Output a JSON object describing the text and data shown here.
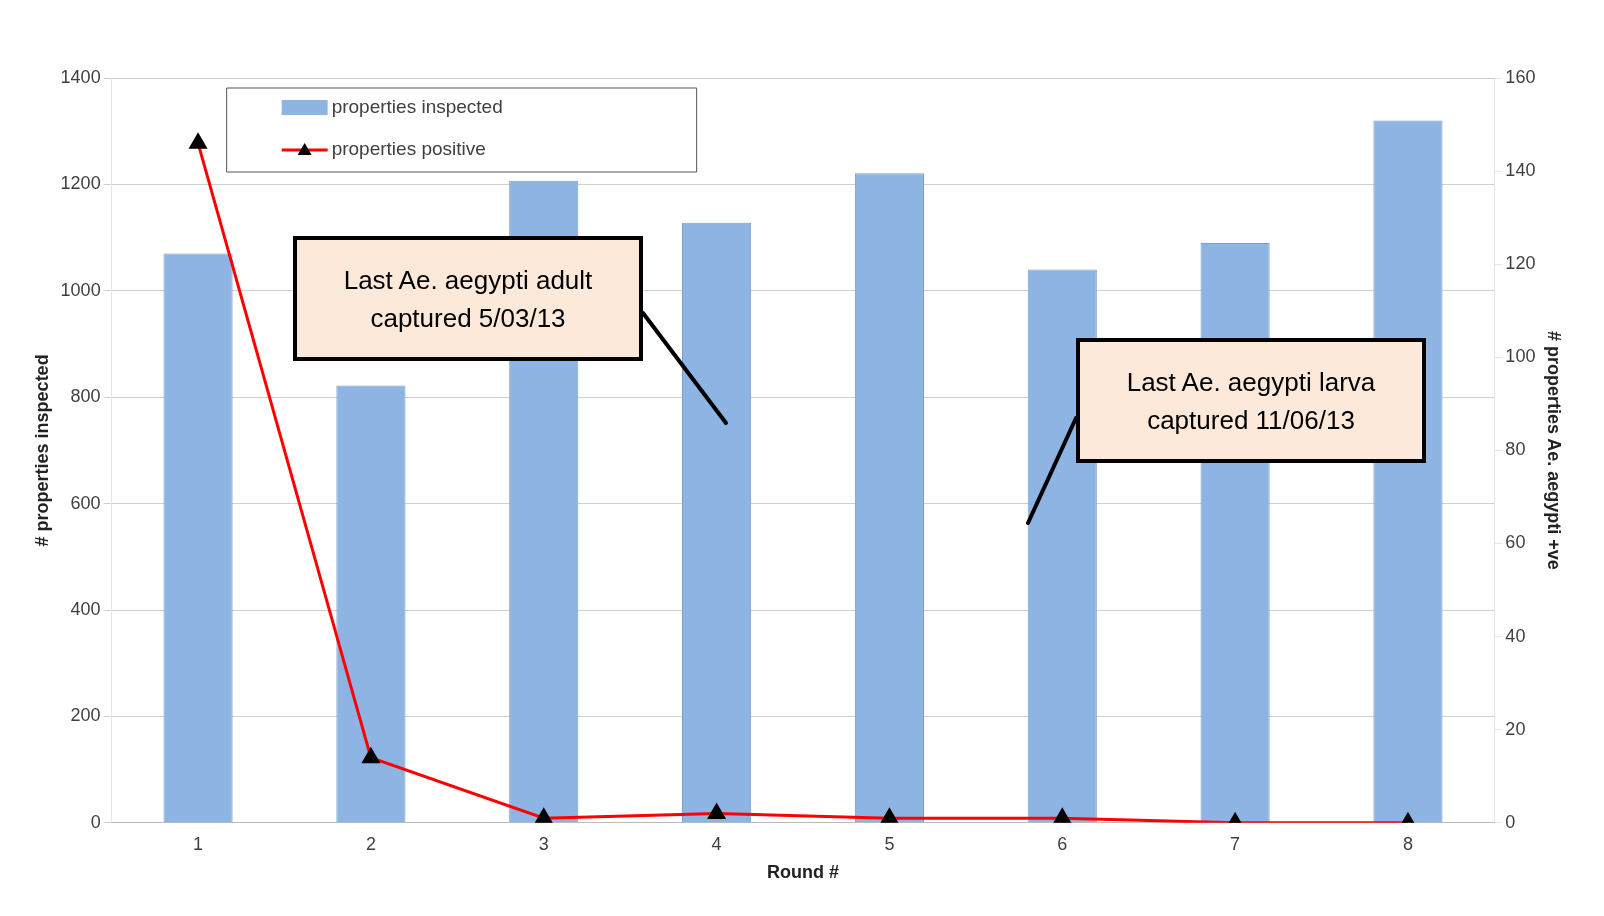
{
  "chart_data": {
    "type": "bar",
    "categories": [
      "1",
      "2",
      "3",
      "4",
      "5",
      "6",
      "7",
      "8"
    ],
    "xlabel": "Round #",
    "ylabel": "# properties inspected",
    "y2label": "# properties Ae. aegypti +ve",
    "series": [
      {
        "name": "properties inspected",
        "color": "#8eb4e3",
        "values": [
          1070,
          822,
          1207,
          1128,
          1221,
          1040,
          1090,
          1320
        ]
      },
      {
        "name": "properties positive",
        "type": "line",
        "axis": "y2",
        "color": "#ff0000",
        "marker": "triangle",
        "values": [
          146,
          14,
          1,
          2,
          1,
          1,
          0,
          0
        ]
      }
    ],
    "ylim": [
      0,
      1400
    ],
    "yticks": [
      0,
      200,
      400,
      600,
      800,
      1000,
      1200,
      1400
    ],
    "y2lim": [
      0,
      160
    ],
    "y2ticks": [
      0,
      20,
      40,
      60,
      80,
      100,
      120,
      140,
      160
    ],
    "grid": "y",
    "legend": "top left",
    "annotations": [
      "Last Ae. aegypti adult captured 5/03/13",
      "Last Ae. aegypti larva captured 11/06/13"
    ]
  }
}
